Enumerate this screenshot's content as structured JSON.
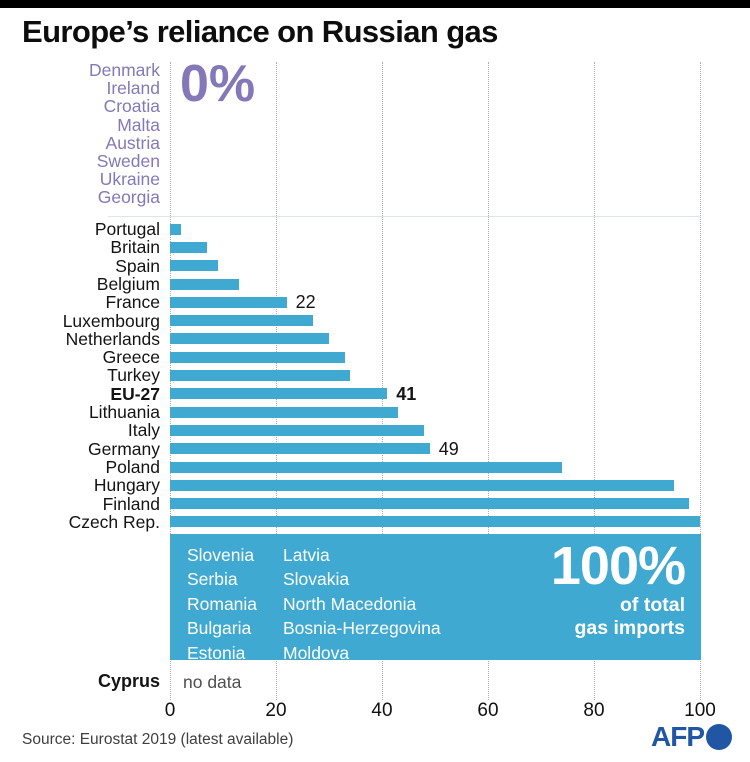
{
  "header": {
    "title": "Europe’s reliance on Russian gas"
  },
  "chart_data": {
    "type": "bar",
    "orientation": "horizontal",
    "title": "Europe’s reliance on Russian gas",
    "xlabel": "",
    "ylabel": "",
    "xlim": [
      0,
      100
    ],
    "x_ticks": [
      "0",
      "20",
      "40",
      "60",
      "80",
      "100"
    ],
    "grid": "vertical-dotted",
    "unit": "% of total gas imports",
    "zero_group": {
      "big_label": "0%",
      "countries": [
        "Denmark",
        "Ireland",
        "Croatia",
        "Malta",
        "Austria",
        "Sweden",
        "Ukraine",
        "Georgia"
      ]
    },
    "bars": [
      {
        "name": "Portugal",
        "value": 2,
        "value_label": "",
        "bold": false
      },
      {
        "name": "Britain",
        "value": 7,
        "value_label": "",
        "bold": false
      },
      {
        "name": "Spain",
        "value": 9,
        "value_label": "",
        "bold": false
      },
      {
        "name": "Belgium",
        "value": 13,
        "value_label": "",
        "bold": false
      },
      {
        "name": "France",
        "value": 22,
        "value_label": "22",
        "bold": false
      },
      {
        "name": "Luxembourg",
        "value": 27,
        "value_label": "",
        "bold": false
      },
      {
        "name": "Netherlands",
        "value": 30,
        "value_label": "",
        "bold": false
      },
      {
        "name": "Greece",
        "value": 33,
        "value_label": "",
        "bold": false
      },
      {
        "name": "Turkey",
        "value": 34,
        "value_label": "",
        "bold": false
      },
      {
        "name": "EU-27",
        "value": 41,
        "value_label": "41",
        "bold": true
      },
      {
        "name": "Lithuania",
        "value": 43,
        "value_label": "",
        "bold": false
      },
      {
        "name": "Italy",
        "value": 48,
        "value_label": "",
        "bold": false
      },
      {
        "name": "Germany",
        "value": 49,
        "value_label": "49",
        "bold": false
      },
      {
        "name": "Poland",
        "value": 74,
        "value_label": "",
        "bold": false
      },
      {
        "name": "Hungary",
        "value": 95,
        "value_label": "",
        "bold": false
      },
      {
        "name": "Finland",
        "value": 98,
        "value_label": "",
        "bold": false
      },
      {
        "name": "Czech Rep.",
        "value": 100,
        "value_label": "",
        "bold": false
      }
    ],
    "full_group": {
      "big_label": "100%",
      "sub_label_line1": "of total",
      "sub_label_line2": "gas imports",
      "countries_col1": [
        "Slovenia",
        "Serbia",
        "Romania",
        "Bulgaria",
        "Estonia"
      ],
      "countries_col2": [
        "Latvia",
        "Slovakia",
        "North Macedonia",
        "Bosnia-Herzegovina",
        "Moldova"
      ]
    },
    "no_data": {
      "name": "Cyprus",
      "label": "no data"
    }
  },
  "footer": {
    "source": "Source: Eurostat 2019 (latest available)",
    "logo_text": "AFP"
  },
  "colors": {
    "bar_blue": "#3fa9d1",
    "zero_purple": "#8578b8",
    "afp_blue": "#2156a5",
    "grid_grey": "#adadad",
    "text_black": "#141414",
    "text_grey": "#4f4f4f"
  }
}
